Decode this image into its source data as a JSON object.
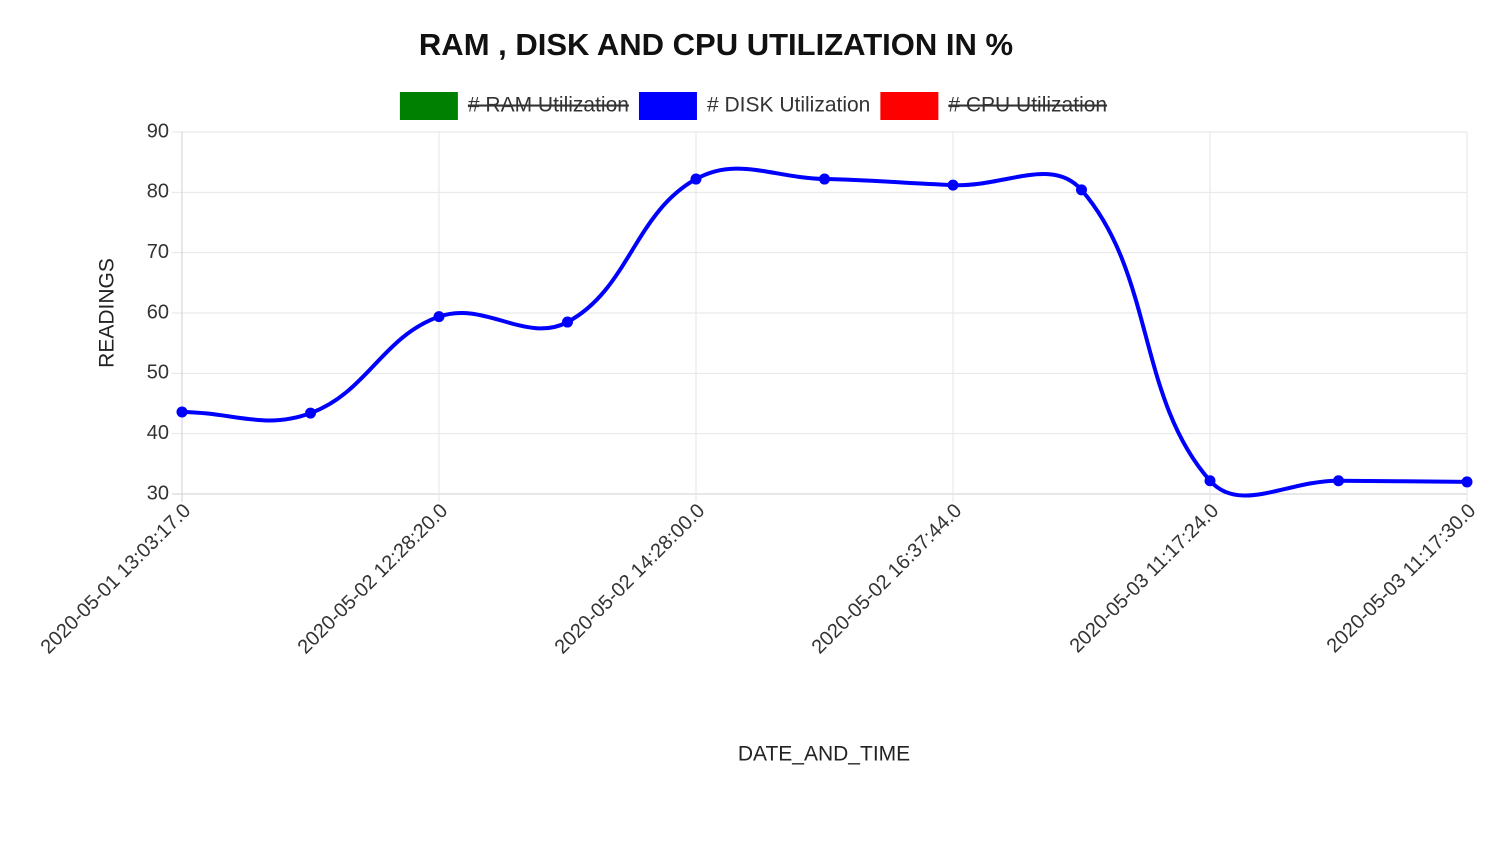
{
  "chart_data": {
    "type": "line",
    "title": "RAM , DISK AND CPU UTILIZATION IN %",
    "x_label": "DATE_AND_TIME",
    "y_label": "READINGS",
    "categories": [
      "2020-05-01 13:03:17.0",
      null,
      "2020-05-02 12:28:20.0",
      null,
      "2020-05-02 14:28:00.0",
      null,
      "2020-05-02 16:37:44.0",
      null,
      "2020-05-03 11:17:24.0",
      null,
      "2020-05-03 11:17:30.0"
    ],
    "series": [
      {
        "name": "# RAM Utilization",
        "color": "#008000",
        "hidden": true,
        "values": [
          null,
          null,
          null,
          null,
          null,
          null,
          null,
          null,
          null,
          null,
          null
        ]
      },
      {
        "name": "# DISK Utilization",
        "color": "#0000ff",
        "hidden": false,
        "values": [
          43.6,
          43.4,
          59.4,
          58.5,
          82.2,
          82.2,
          81.2,
          80.4,
          32.2,
          32.2,
          32.0
        ]
      },
      {
        "name": "# CPU Utilization",
        "color": "#ff0000",
        "hidden": true,
        "values": [
          null,
          null,
          null,
          null,
          null,
          null,
          null,
          null,
          null,
          null,
          null
        ]
      }
    ],
    "ylim": [
      30,
      90
    ],
    "yticks": [
      30,
      40,
      50,
      60,
      70,
      80,
      90
    ],
    "grid": true,
    "legend": "top"
  }
}
